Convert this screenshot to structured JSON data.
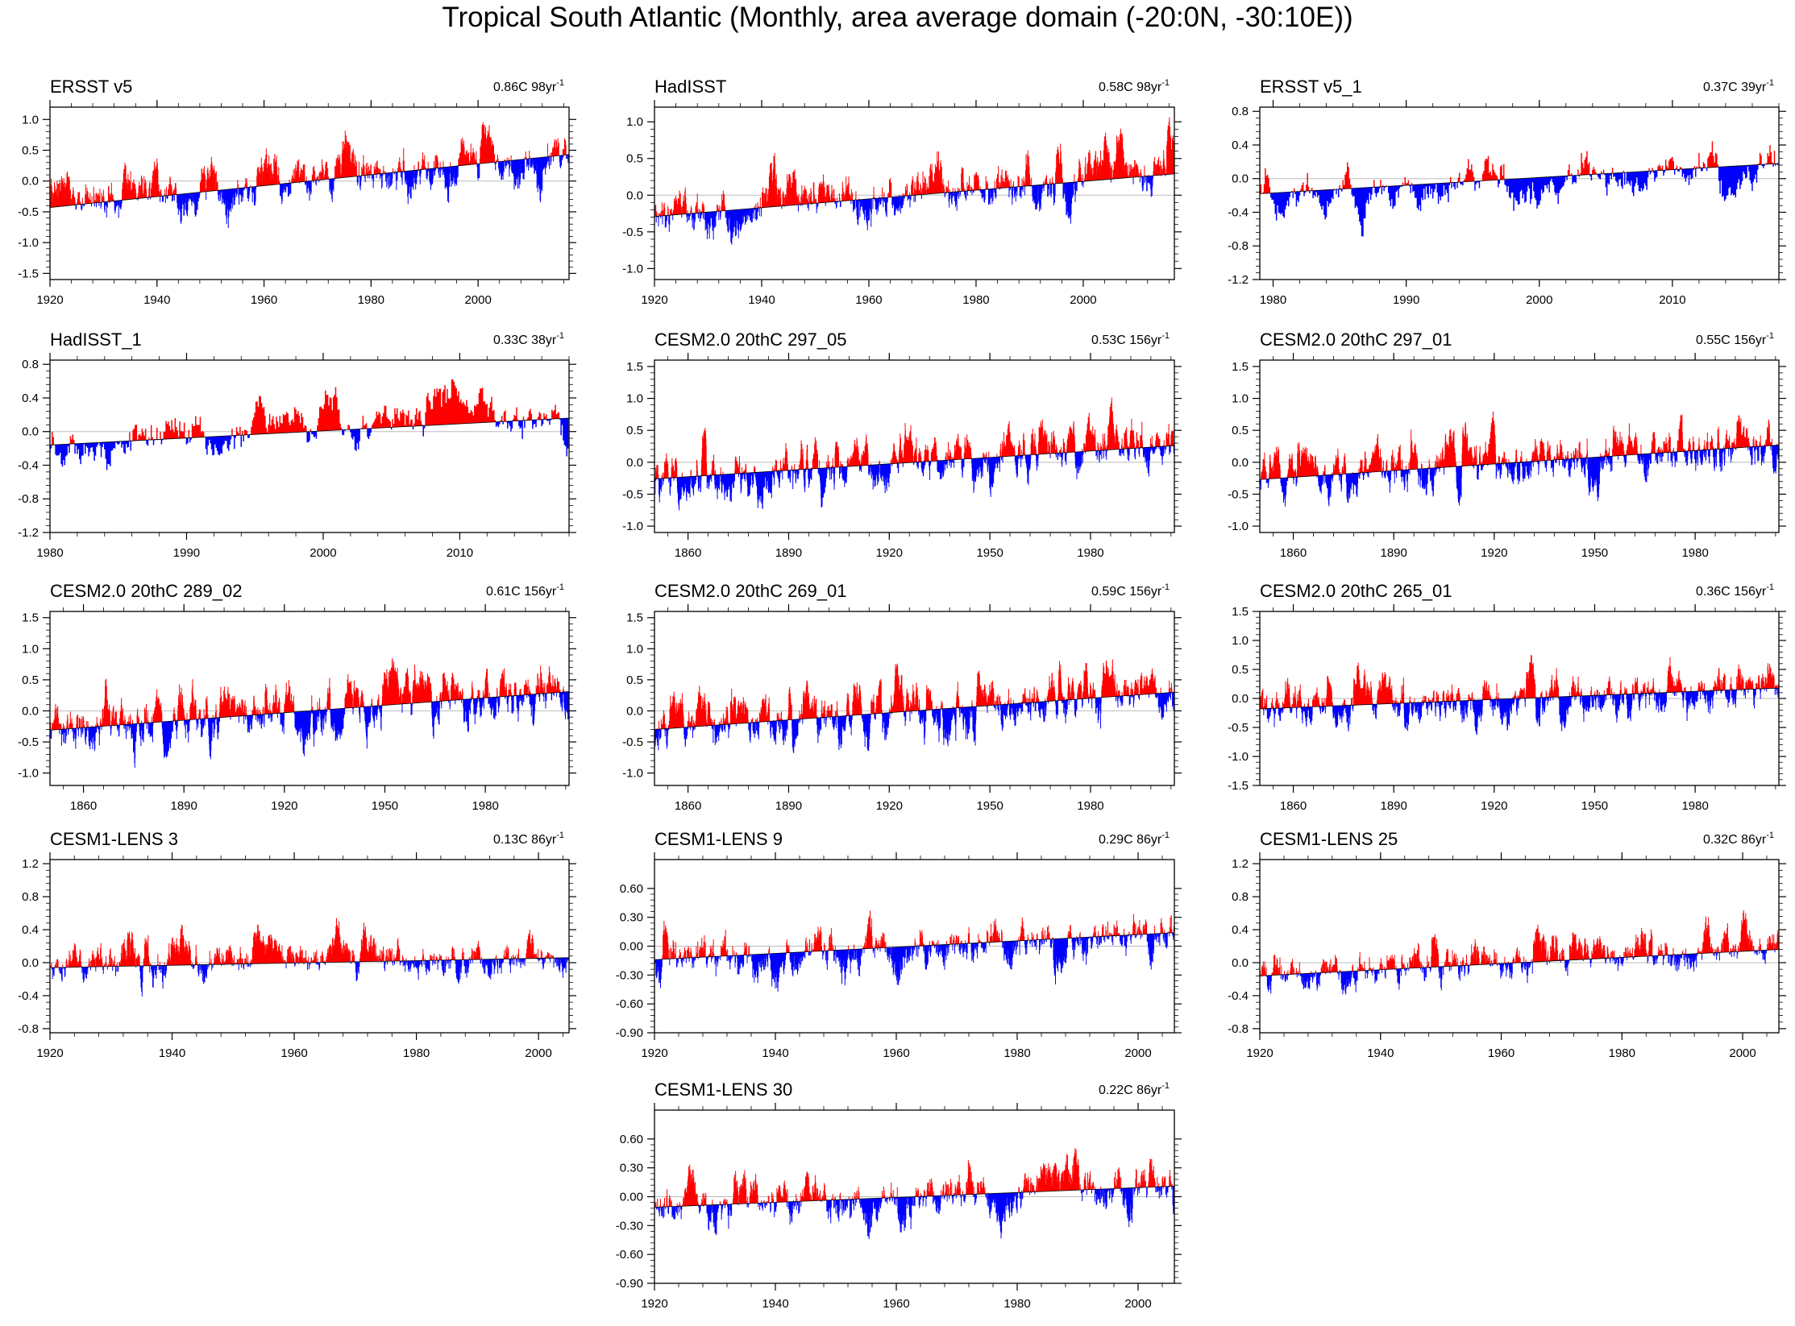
{
  "figure_title": "Tropical South Atlantic (Monthly, area average domain (-20:0N, -30:10E))",
  "colors": {
    "positive": "#ff0000",
    "negative": "#0000ff",
    "trend": "#000000",
    "zero": "#bbbbbb"
  },
  "chart_data": [
    {
      "type": "bar",
      "title": "ERSST v5",
      "trend_label": "0.86C 98yr",
      "trend_sup": "-1",
      "x_start": 1920,
      "x_end": 2017,
      "xticks": [
        1920,
        1940,
        1960,
        1980,
        2000
      ],
      "xtick_labels": [
        "1920",
        "1940",
        "1960",
        "1980",
        "2000"
      ],
      "ylim": [
        -1.6,
        1.2
      ],
      "yticks": [
        -1.5,
        -1.0,
        -0.5,
        0.0,
        0.5,
        1.0
      ],
      "ytick_labels": [
        "-1.5",
        "-1.0",
        "-0.5",
        "0.0",
        "0.5",
        "1.0"
      ],
      "trend_line": [
        -0.43,
        0.43
      ],
      "amp": 0.55,
      "seed": 11
    },
    {
      "type": "bar",
      "title": "HadISST",
      "trend_label": "0.58C 98yr",
      "trend_sup": "-1",
      "x_start": 1920,
      "x_end": 2017,
      "xticks": [
        1920,
        1940,
        1960,
        1980,
        2000
      ],
      "xtick_labels": [
        "1920",
        "1940",
        "1960",
        "1980",
        "2000"
      ],
      "ylim": [
        -1.15,
        1.2
      ],
      "yticks": [
        -1.0,
        -0.5,
        0.0,
        0.5,
        1.0
      ],
      "ytick_labels": [
        "-1.0",
        "-0.5",
        "0.0",
        "0.5",
        "1.0"
      ],
      "trend_line": [
        -0.29,
        0.29
      ],
      "amp": 0.5,
      "seed": 23
    },
    {
      "type": "bar",
      "title": "ERSST v5_1",
      "trend_label": "0.37C 39yr",
      "trend_sup": "-1",
      "x_start": 1979,
      "x_end": 2018,
      "xticks": [
        1980,
        1990,
        2000,
        2010
      ],
      "xtick_labels": [
        "1980",
        "1990",
        "2000",
        "2010"
      ],
      "ylim": [
        -1.2,
        0.85
      ],
      "yticks": [
        -1.2,
        -0.8,
        -0.4,
        0.0,
        0.4,
        0.8
      ],
      "ytick_labels": [
        "-1.2",
        "-0.8",
        "-0.4",
        "0.0",
        "0.4",
        "0.8"
      ],
      "trend_line": [
        -0.18,
        0.18
      ],
      "amp": 0.4,
      "seed": 37
    },
    {
      "type": "bar",
      "title": "HadISST_1",
      "trend_label": "0.33C 38yr",
      "trend_sup": "-1",
      "x_start": 1980,
      "x_end": 2018,
      "xticks": [
        1980,
        1990,
        2000,
        2010
      ],
      "xtick_labels": [
        "1980",
        "1990",
        "2000",
        "2010"
      ],
      "ylim": [
        -1.2,
        0.85
      ],
      "yticks": [
        -1.2,
        -0.8,
        -0.4,
        0.0,
        0.4,
        0.8
      ],
      "ytick_labels": [
        "-1.2",
        "-0.8",
        "-0.4",
        "0.0",
        "0.4",
        "0.8"
      ],
      "trend_line": [
        -0.16,
        0.16
      ],
      "amp": 0.4,
      "seed": 41
    },
    {
      "type": "bar",
      "title": "CESM2.0 20thC 297_05",
      "trend_label": "0.53C 156yr",
      "trend_sup": "-1",
      "x_start": 1850,
      "x_end": 2005,
      "xticks": [
        1860,
        1890,
        1920,
        1950,
        1980
      ],
      "xtick_labels": [
        "1860",
        "1890",
        "1920",
        "1950",
        "1980"
      ],
      "ylim": [
        -1.1,
        1.6
      ],
      "yticks": [
        -1.0,
        -0.5,
        0.0,
        0.5,
        1.0,
        1.5
      ],
      "ytick_labels": [
        "-1.0",
        "-0.5",
        "0.0",
        "0.5",
        "1.0",
        "1.5"
      ],
      "trend_line": [
        -0.26,
        0.26
      ],
      "amp": 0.5,
      "seed": 53
    },
    {
      "type": "bar",
      "title": "CESM2.0 20thC 297_01",
      "trend_label": "0.55C 156yr",
      "trend_sup": "-1",
      "x_start": 1850,
      "x_end": 2005,
      "xticks": [
        1860,
        1890,
        1920,
        1950,
        1980
      ],
      "xtick_labels": [
        "1860",
        "1890",
        "1920",
        "1950",
        "1980"
      ],
      "ylim": [
        -1.1,
        1.6
      ],
      "yticks": [
        -1.0,
        -0.5,
        0.0,
        0.5,
        1.0,
        1.5
      ],
      "ytick_labels": [
        "-1.0",
        "-0.5",
        "0.0",
        "0.5",
        "1.0",
        "1.5"
      ],
      "trend_line": [
        -0.27,
        0.27
      ],
      "amp": 0.5,
      "seed": 67
    },
    {
      "type": "bar",
      "title": "CESM2.0 20thC 289_02",
      "trend_label": "0.61C 156yr",
      "trend_sup": "-1",
      "x_start": 1850,
      "x_end": 2005,
      "xticks": [
        1860,
        1890,
        1920,
        1950,
        1980
      ],
      "xtick_labels": [
        "1860",
        "1890",
        "1920",
        "1950",
        "1980"
      ],
      "ylim": [
        -1.2,
        1.6
      ],
      "yticks": [
        -1.0,
        -0.5,
        0.0,
        0.5,
        1.0,
        1.5
      ],
      "ytick_labels": [
        "-1.0",
        "-0.5",
        "0.0",
        "0.5",
        "1.0",
        "1.5"
      ],
      "trend_line": [
        -0.31,
        0.31
      ],
      "amp": 0.55,
      "seed": 71
    },
    {
      "type": "bar",
      "title": "CESM2.0 20thC 269_01",
      "trend_label": "0.59C 156yr",
      "trend_sup": "-1",
      "x_start": 1850,
      "x_end": 2005,
      "xticks": [
        1860,
        1890,
        1920,
        1950,
        1980
      ],
      "xtick_labels": [
        "1860",
        "1890",
        "1920",
        "1950",
        "1980"
      ],
      "ylim": [
        -1.2,
        1.6
      ],
      "yticks": [
        -1.0,
        -0.5,
        0.0,
        0.5,
        1.0,
        1.5
      ],
      "ytick_labels": [
        "-1.0",
        "-0.5",
        "0.0",
        "0.5",
        "1.0",
        "1.5"
      ],
      "trend_line": [
        -0.3,
        0.3
      ],
      "amp": 0.55,
      "seed": 83
    },
    {
      "type": "bar",
      "title": "CESM2.0 20thC 265_01",
      "trend_label": "0.36C 156yr",
      "trend_sup": "-1",
      "x_start": 1850,
      "x_end": 2005,
      "xticks": [
        1860,
        1890,
        1920,
        1950,
        1980
      ],
      "xtick_labels": [
        "1860",
        "1890",
        "1920",
        "1950",
        "1980"
      ],
      "ylim": [
        -1.5,
        1.5
      ],
      "yticks": [
        -1.5,
        -1.0,
        -0.5,
        0.0,
        0.5,
        1.0,
        1.5
      ],
      "ytick_labels": [
        "-1.5",
        "-1.0",
        "-0.5",
        "0.0",
        "0.5",
        "1.0",
        "1.5"
      ],
      "trend_line": [
        -0.18,
        0.18
      ],
      "amp": 0.5,
      "seed": 97
    },
    {
      "type": "bar",
      "title": "CESM1-LENS 3",
      "trend_label": "0.13C 86yr",
      "trend_sup": "-1",
      "x_start": 1920,
      "x_end": 2005,
      "xticks": [
        1920,
        1940,
        1960,
        1980,
        2000
      ],
      "xtick_labels": [
        "1920",
        "1940",
        "1960",
        "1980",
        "2000"
      ],
      "ylim": [
        -0.85,
        1.25
      ],
      "yticks": [
        -0.8,
        -0.4,
        0.0,
        0.4,
        0.8,
        1.2
      ],
      "ytick_labels": [
        "-0.8",
        "-0.4",
        "0.0",
        "0.4",
        "0.8",
        "1.2"
      ],
      "trend_line": [
        -0.06,
        0.06
      ],
      "amp": 0.35,
      "seed": 101
    },
    {
      "type": "bar",
      "title": "CESM1-LENS 9",
      "trend_label": "0.29C 86yr",
      "trend_sup": "-1",
      "x_start": 1920,
      "x_end": 2006,
      "xticks": [
        1920,
        1940,
        1960,
        1980,
        2000
      ],
      "xtick_labels": [
        "1920",
        "1940",
        "1960",
        "1980",
        "2000"
      ],
      "ylim": [
        -0.9,
        0.9
      ],
      "yticks": [
        -0.9,
        -0.6,
        -0.3,
        0.0,
        0.3,
        0.6
      ],
      "ytick_labels": [
        "-0.90",
        "-0.60",
        "-0.30",
        "0.00",
        "0.30",
        "0.60"
      ],
      "trend_line": [
        -0.14,
        0.14
      ],
      "amp": 0.35,
      "seed": 113
    },
    {
      "type": "bar",
      "title": "CESM1-LENS 25",
      "trend_label": "0.32C 86yr",
      "trend_sup": "-1",
      "x_start": 1920,
      "x_end": 2006,
      "xticks": [
        1920,
        1940,
        1960,
        1980,
        2000
      ],
      "xtick_labels": [
        "1920",
        "1940",
        "1960",
        "1980",
        "2000"
      ],
      "ylim": [
        -0.85,
        1.25
      ],
      "yticks": [
        -0.8,
        -0.4,
        0.0,
        0.4,
        0.8,
        1.2
      ],
      "ytick_labels": [
        "-0.8",
        "-0.4",
        "0.0",
        "0.4",
        "0.8",
        "1.2"
      ],
      "trend_line": [
        -0.16,
        0.16
      ],
      "amp": 0.35,
      "seed": 127
    },
    {
      "type": "bar",
      "title": "CESM1-LENS 30",
      "trend_label": "0.22C 86yr",
      "trend_sup": "-1",
      "x_start": 1920,
      "x_end": 2006,
      "xticks": [
        1920,
        1940,
        1960,
        1980,
        2000
      ],
      "xtick_labels": [
        "1920",
        "1940",
        "1960",
        "1980",
        "2000"
      ],
      "ylim": [
        -0.9,
        0.9
      ],
      "yticks": [
        -0.9,
        -0.6,
        -0.3,
        0.0,
        0.3,
        0.6
      ],
      "ytick_labels": [
        "-0.90",
        "-0.60",
        "-0.30",
        "0.00",
        "0.30",
        "0.60"
      ],
      "trend_line": [
        -0.11,
        0.11
      ],
      "amp": 0.35,
      "seed": 131
    }
  ]
}
